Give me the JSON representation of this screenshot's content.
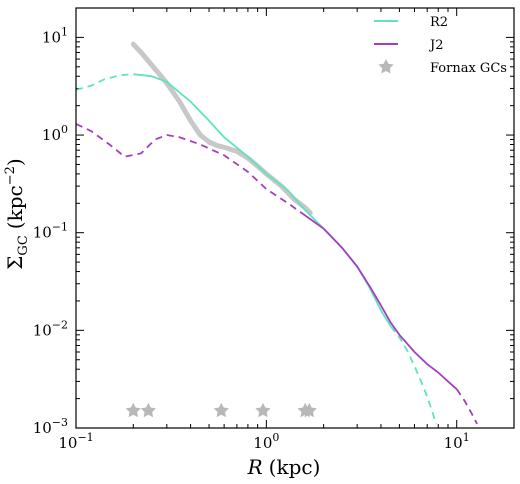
{
  "chart_data": {
    "type": "line",
    "title": "",
    "xlabel": {
      "symbol": "R",
      "unit": "(kpc)"
    },
    "ylabel": {
      "symbol": "Σ",
      "subscript": "GC",
      "unit_open": "(kpc",
      "unit_exp": "−2",
      "unit_close": ")"
    },
    "xscale": "log",
    "yscale": "log",
    "xlim": [
      0.1,
      20
    ],
    "ylim": [
      0.001,
      20
    ],
    "x_ticks": [
      {
        "value": 0.1,
        "base": "10",
        "exp": "−1"
      },
      {
        "value": 1,
        "base": "10",
        "exp": "0"
      },
      {
        "value": 10,
        "base": "10",
        "exp": "1"
      }
    ],
    "y_ticks": [
      {
        "value": 0.001,
        "base": "10",
        "exp": "−3"
      },
      {
        "value": 0.01,
        "base": "10",
        "exp": "−2"
      },
      {
        "value": 0.1,
        "base": "10",
        "exp": "−1"
      },
      {
        "value": 1,
        "base": "10",
        "exp": "0"
      },
      {
        "value": 10,
        "base": "10",
        "exp": "1"
      }
    ],
    "grid": false,
    "legend_position": "top-right",
    "series": [
      {
        "name": "R2",
        "color": "#5fe3c0",
        "dashed_segments": [
          {
            "x": [
              0.1,
              0.12,
              0.14,
              0.17,
              0.2
            ],
            "y": [
              2.9,
              3.2,
              3.7,
              4.1,
              4.2
            ]
          },
          {
            "x": [
              4.5,
              5.0,
              5.5,
              6.0,
              6.5,
              7.0,
              7.5,
              7.8
            ],
            "y": [
              0.011,
              0.0085,
              0.0062,
              0.0043,
              0.003,
              0.0021,
              0.0014,
              0.0011
            ]
          }
        ],
        "solid_segment": {
          "x": [
            0.2,
            0.25,
            0.3,
            0.4,
            0.5,
            0.6,
            0.8,
            1.0,
            1.3,
            1.6,
            2.0,
            2.5,
            3.0,
            3.5,
            4.0,
            4.5
          ],
          "y": [
            4.2,
            4.0,
            3.5,
            2.2,
            1.4,
            0.95,
            0.6,
            0.4,
            0.27,
            0.17,
            0.11,
            0.07,
            0.045,
            0.027,
            0.016,
            0.011
          ]
        }
      },
      {
        "name": "J2",
        "color": "#a23fc0",
        "dashed_segments": [
          {
            "x": [
              0.1,
              0.12,
              0.15,
              0.18,
              0.22,
              0.26,
              0.3,
              0.35,
              0.45,
              0.6,
              0.8,
              1.0,
              1.3,
              1.6
            ],
            "y": [
              1.3,
              1.1,
              0.8,
              0.6,
              0.65,
              0.9,
              1.0,
              0.95,
              0.8,
              0.62,
              0.42,
              0.28,
              0.2,
              0.15
            ]
          },
          {
            "x": [
              10,
              11,
              12,
              12.8
            ],
            "y": [
              0.0025,
              0.0019,
              0.0014,
              0.0011
            ]
          }
        ],
        "solid_segment": {
          "x": [
            1.6,
            2.0,
            2.5,
            3.0,
            3.5,
            4.0,
            4.5,
            5.0,
            6.0,
            7.0,
            8.0,
            9.0,
            10.0
          ],
          "y": [
            0.15,
            0.11,
            0.07,
            0.045,
            0.028,
            0.018,
            0.012,
            0.009,
            0.006,
            0.0045,
            0.0037,
            0.003,
            0.0025
          ]
        }
      },
      {
        "name": "",
        "color": "#c8c8c8",
        "x": [
          0.2,
          0.22,
          0.25,
          0.28,
          0.3,
          0.35,
          0.4,
          0.45,
          0.5,
          0.55,
          0.6,
          0.7,
          0.8,
          0.9,
          1.0,
          1.2,
          1.4,
          1.6,
          1.7
        ],
        "y": [
          8.5,
          7.0,
          5.2,
          4.0,
          3.4,
          2.2,
          1.4,
          1.0,
          0.85,
          0.78,
          0.75,
          0.68,
          0.58,
          0.48,
          0.4,
          0.3,
          0.22,
          0.18,
          0.16
        ]
      }
    ],
    "fornax_gcs": {
      "name": "Fornax GCs",
      "color": "#b8b8b8",
      "x": [
        0.2,
        0.24,
        0.58,
        0.96,
        1.6,
        1.68
      ],
      "y": [
        0.0015,
        0.0015,
        0.0015,
        0.0015,
        0.0015,
        0.0015
      ]
    }
  }
}
